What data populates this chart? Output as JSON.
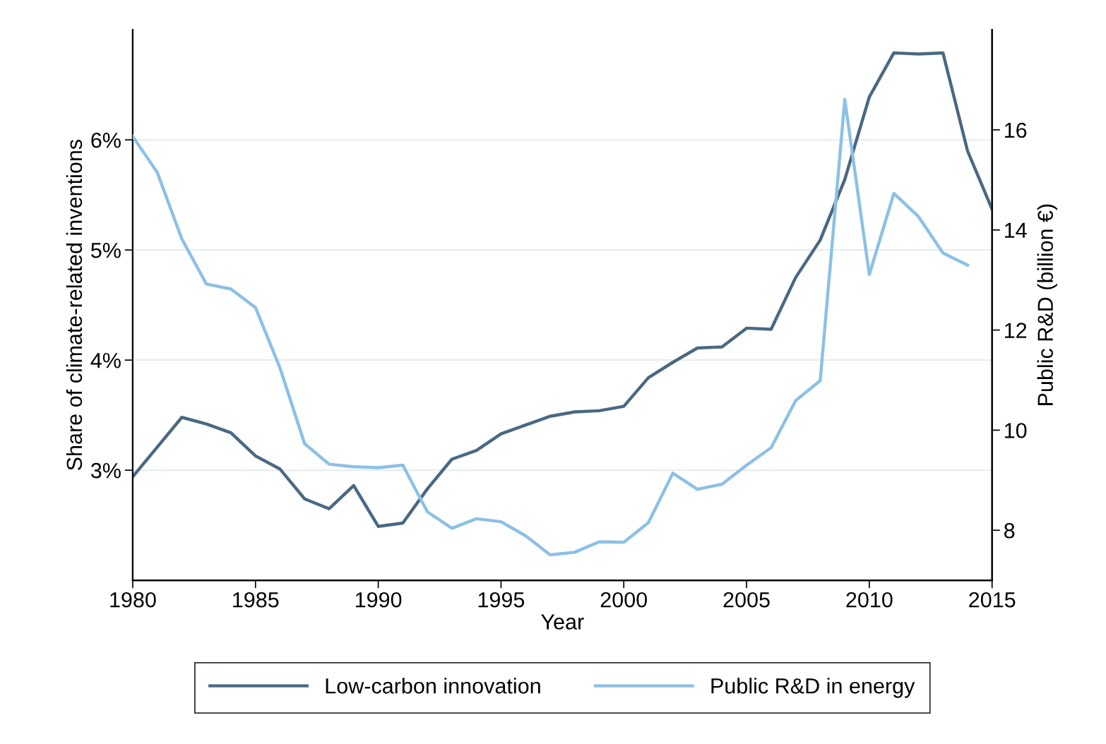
{
  "chart_data": {
    "type": "line",
    "xlabel": "Year",
    "ylabel": "Share of climate-related inventions",
    "y2label": "Public R&D (billion €)",
    "x": [
      1980,
      1981,
      1982,
      1983,
      1984,
      1985,
      1986,
      1987,
      1988,
      1989,
      1990,
      1991,
      1992,
      1993,
      1994,
      1995,
      1996,
      1997,
      1998,
      1999,
      2000,
      2001,
      2002,
      2003,
      2004,
      2005,
      2006,
      2007,
      2008,
      2009,
      2010,
      2011,
      2012,
      2013,
      2014,
      2015
    ],
    "series": [
      {
        "name": "Low-carbon innovation",
        "color": "#4a6882",
        "values": [
          2.94,
          3.21,
          3.48,
          3.42,
          3.34,
          3.13,
          3.01,
          2.74,
          2.65,
          2.86,
          2.49,
          2.52,
          2.83,
          3.1,
          3.18,
          3.33,
          3.41,
          3.49,
          3.53,
          3.54,
          3.58,
          3.84,
          3.98,
          4.11,
          4.12,
          4.29,
          4.28,
          4.75,
          5.09,
          5.64,
          6.39,
          6.79,
          6.78,
          6.79,
          5.9,
          5.37
        ]
      },
      {
        "name": "Public R&D in energy",
        "color": "#8cc0e6",
        "axis": "y2",
        "values": [
          15.87,
          15.15,
          13.82,
          12.92,
          12.82,
          12.45,
          11.24,
          9.73,
          9.32,
          9.27,
          9.25,
          9.3,
          8.37,
          8.04,
          8.23,
          8.17,
          7.89,
          7.51,
          7.56,
          7.77,
          7.76,
          8.15,
          9.14,
          8.82,
          8.92,
          9.3,
          9.65,
          10.59,
          10.99,
          16.61,
          13.11,
          14.73,
          14.27,
          13.54,
          13.3,
          null
        ]
      }
    ],
    "xlim": [
      1980,
      2015
    ],
    "xticks": [
      1980,
      1985,
      1990,
      1995,
      2000,
      2005,
      2010,
      2015
    ],
    "ylim": [
      2,
      7
    ],
    "yticks": [
      {
        "value": 3,
        "label": "3%"
      },
      {
        "value": 4,
        "label": "4%"
      },
      {
        "value": 5,
        "label": "5%"
      },
      {
        "value": 6,
        "label": "6%"
      }
    ],
    "y2lim": [
      7,
      18
    ],
    "y2ticks": [
      8,
      10,
      12,
      14,
      16
    ],
    "grid": "y",
    "legend": "bottom",
    "marker": "none",
    "line_style": "solid"
  }
}
